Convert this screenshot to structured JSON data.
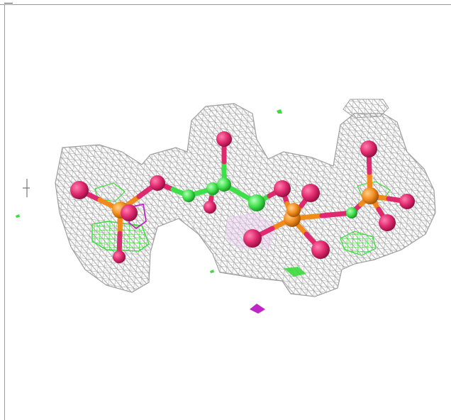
{
  "image": {
    "kind": "molecular-electron-density-view",
    "colors": {
      "background": "#ffffff",
      "mesh": "#9e9e9e",
      "oxygen": "#e0286e",
      "phosphorus": "#f08a1c",
      "carbon": "#3ee04a",
      "positive_difference": "#3bdc3b",
      "negative_difference": "#c026c6",
      "frame": "#9a9a9a"
    }
  }
}
